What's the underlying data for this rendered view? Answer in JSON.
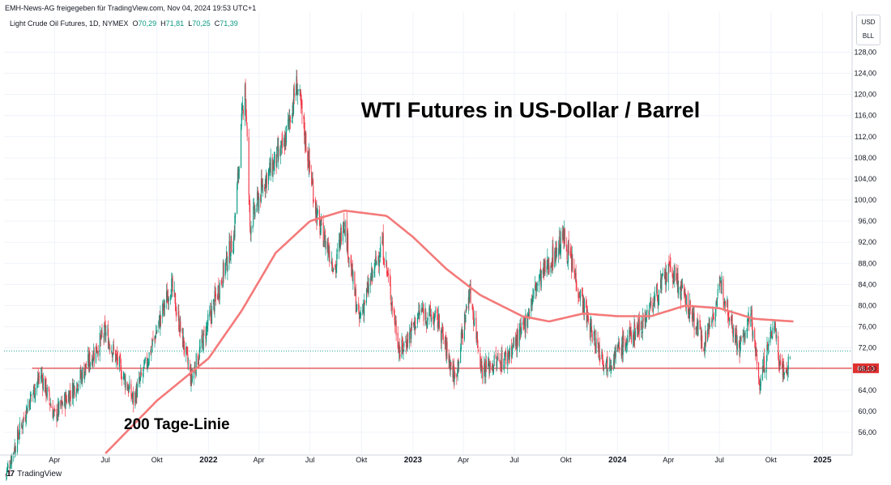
{
  "header": {
    "text": "EMH-News-AG freigegeben für TradingView.com, Nov 04, 2024 19:53 UTC+1"
  },
  "symbol": {
    "name": "Light Crude Oil Futures, 1D, NYMEX",
    "open_label": "O",
    "open": "70,29",
    "high_label": "H",
    "high": "71,81",
    "low_label": "L",
    "low": "70,25",
    "close_label": "C",
    "close": "71,39"
  },
  "currency": {
    "ccy": "USD",
    "unit": "BLL"
  },
  "brand": {
    "logo": "17",
    "name": "TradingView"
  },
  "colors": {
    "up": "#089981",
    "down": "#f23645",
    "ma": "#f47a7a",
    "hline": "#e03030",
    "grid": "#f0f3fa"
  },
  "chart_data": {
    "type": "candlestick",
    "title": "WTI Futures in US-Dollar / Barrel",
    "annotations": [
      "200 Tage-Linie"
    ],
    "ylim": [
      52,
      132
    ],
    "y_ticks": [
      "56,00",
      "60,00",
      "64,00",
      "68,00",
      "72,00",
      "76,00",
      "80,00",
      "84,00",
      "88,00",
      "92,00",
      "96,00",
      "100,00",
      "104,00",
      "108,00",
      "112,00",
      "116,00",
      "120,00",
      "124,00",
      "128,00"
    ],
    "y_tick_values": [
      56,
      60,
      64,
      68,
      72,
      76,
      80,
      84,
      88,
      92,
      96,
      100,
      104,
      108,
      112,
      116,
      120,
      124,
      128
    ],
    "x_ticks": [
      "Apr",
      "Jul",
      "Okt",
      "2022",
      "Apr",
      "Jul",
      "Okt",
      "2023",
      "Apr",
      "Jul",
      "Okt",
      "2024",
      "Apr",
      "Jul",
      "Okt",
      "2025"
    ],
    "x_tick_dates": [
      "2021-04-01",
      "2021-07-01",
      "2021-10-01",
      "2022-01-01",
      "2022-04-01",
      "2022-07-01",
      "2022-10-01",
      "2023-01-01",
      "2023-04-01",
      "2023-07-01",
      "2023-10-01",
      "2024-01-01",
      "2024-04-01",
      "2024-07-01",
      "2024-10-01",
      "2025-01-01"
    ],
    "x_tick_bold": [
      false,
      false,
      false,
      true,
      false,
      false,
      false,
      true,
      false,
      false,
      false,
      true,
      false,
      false,
      false,
      true
    ],
    "horizontal_line": {
      "value": 68.13,
      "label": "68,13",
      "start": "2021-02-20"
    },
    "last_price": 71.39,
    "price_path": [
      [
        "2021-01-04",
        48
      ],
      [
        "2021-02-15",
        62
      ],
      [
        "2021-03-08",
        67
      ],
      [
        "2021-04-01",
        59
      ],
      [
        "2021-05-15",
        66
      ],
      [
        "2021-07-01",
        75
      ],
      [
        "2021-08-20",
        62
      ],
      [
        "2021-09-15",
        70
      ],
      [
        "2021-10-26",
        84
      ],
      [
        "2021-12-01",
        66
      ],
      [
        "2022-01-10",
        80
      ],
      [
        "2022-02-15",
        93
      ],
      [
        "2022-03-07",
        123
      ],
      [
        "2022-03-16",
        95
      ],
      [
        "2022-04-12",
        104
      ],
      [
        "2022-05-15",
        110
      ],
      [
        "2022-06-08",
        122
      ],
      [
        "2022-07-15",
        96
      ],
      [
        "2022-08-16",
        87
      ],
      [
        "2022-08-30",
        97
      ],
      [
        "2022-09-26",
        77
      ],
      [
        "2022-11-07",
        92
      ],
      [
        "2022-12-09",
        71
      ],
      [
        "2023-01-15",
        79
      ],
      [
        "2023-02-15",
        77
      ],
      [
        "2023-03-17",
        66
      ],
      [
        "2023-04-12",
        83
      ],
      [
        "2023-05-04",
        68
      ],
      [
        "2023-06-15",
        70
      ],
      [
        "2023-07-15",
        75
      ],
      [
        "2023-08-10",
        84
      ],
      [
        "2023-09-27",
        93
      ],
      [
        "2023-11-15",
        75
      ],
      [
        "2023-12-12",
        69
      ],
      [
        "2024-01-15",
        73
      ],
      [
        "2024-02-15",
        77
      ],
      [
        "2024-04-05",
        87
      ],
      [
        "2024-06-04",
        73
      ],
      [
        "2024-07-05",
        84
      ],
      [
        "2024-08-05",
        72
      ],
      [
        "2024-08-27",
        78
      ],
      [
        "2024-09-10",
        65
      ],
      [
        "2024-10-07",
        77
      ],
      [
        "2024-10-15",
        70
      ],
      [
        "2024-10-28",
        67
      ],
      [
        "2024-11-04",
        71
      ]
    ],
    "ma200": [
      [
        "2021-07-01",
        52
      ],
      [
        "2021-10-01",
        62
      ],
      [
        "2022-01-01",
        70
      ],
      [
        "2022-03-01",
        79
      ],
      [
        "2022-05-01",
        90
      ],
      [
        "2022-07-01",
        96
      ],
      [
        "2022-09-01",
        98
      ],
      [
        "2022-11-15",
        97
      ],
      [
        "2023-01-01",
        93
      ],
      [
        "2023-03-01",
        87
      ],
      [
        "2023-05-01",
        82
      ],
      [
        "2023-07-15",
        78
      ],
      [
        "2023-09-01",
        77
      ],
      [
        "2023-11-01",
        78.5
      ],
      [
        "2024-01-01",
        78
      ],
      [
        "2024-03-01",
        78
      ],
      [
        "2024-05-01",
        80
      ],
      [
        "2024-07-01",
        79.5
      ],
      [
        "2024-09-01",
        77.5
      ],
      [
        "2024-11-10",
        77
      ]
    ]
  }
}
